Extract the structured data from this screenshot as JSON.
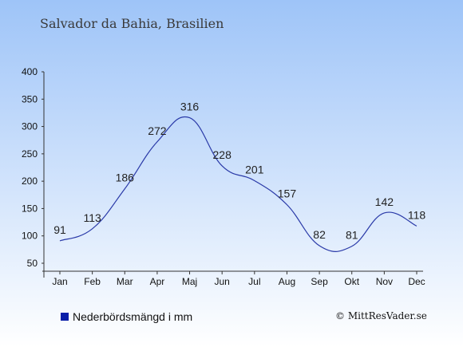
{
  "chart_data": {
    "type": "line",
    "title": "Salvador da Bahia, Brasilien",
    "categories": [
      "Jan",
      "Feb",
      "Mar",
      "Apr",
      "Maj",
      "Jun",
      "Jul",
      "Aug",
      "Sep",
      "Okt",
      "Nov",
      "Dec"
    ],
    "series": [
      {
        "name": "Nederbördsmängd i mm",
        "values": [
          91,
          113,
          186,
          272,
          316,
          228,
          201,
          157,
          82,
          81,
          142,
          118
        ]
      }
    ],
    "ylim": [
      50,
      400
    ],
    "yticks": [
      400,
      350,
      300,
      250,
      200,
      150,
      100,
      50
    ],
    "legend_position": "bottom-left",
    "grid": false,
    "colors": {
      "line": "#2a3aa8",
      "background_top": "#9ec4f8",
      "background_bottom": "#ffffff",
      "legend_swatch": "#0a1ea8"
    }
  },
  "credit": "© MittResVader.se"
}
